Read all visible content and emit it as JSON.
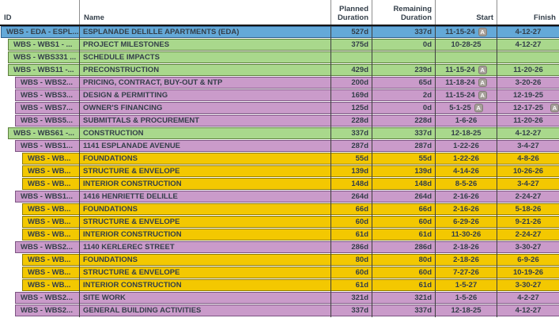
{
  "columns": {
    "id": "ID",
    "name": "Name",
    "planned": "Planned Duration",
    "remaining": "Remaining Duration",
    "start": "Start",
    "finish": "Finish"
  },
  "badge_label": "A",
  "row_colors": {
    "project": {
      "fill": "#64a9d8",
      "border": "#2e5f8c"
    },
    "phase": {
      "fill": "#a9d88c",
      "border": "#5d7f3d"
    },
    "area": {
      "fill": "#ca9bca",
      "border": "#7d5583"
    },
    "task": {
      "fill": "#f3c801",
      "border": "#8f7c00"
    }
  },
  "rows": [
    {
      "id": "WBS - EDA - ESPL...",
      "name": "ESPLANADE DELILLE APARTMENTS (EDA)",
      "level": 0,
      "color": "project",
      "planned": "527d",
      "remaining": "337d",
      "start": "11-15-24",
      "start_a": true,
      "finish": "4-12-27",
      "finish_a": false
    },
    {
      "id": "WBS - WBS1 - ...",
      "name": "PROJECT MILESTONES",
      "level": 1,
      "color": "phase",
      "planned": "375d",
      "remaining": "0d",
      "start": "10-28-25",
      "start_a": false,
      "finish": "4-12-27",
      "finish_a": false
    },
    {
      "id": "WBS - WBS331 ...",
      "name": "SCHEDULE IMPACTS",
      "level": 1,
      "color": "phase",
      "planned": "",
      "remaining": "",
      "start": "",
      "start_a": false,
      "finish": "",
      "finish_a": false
    },
    {
      "id": "WBS - WBS11 -...",
      "name": "PRECONSTRUCTION",
      "level": 1,
      "color": "phase",
      "planned": "429d",
      "remaining": "239d",
      "start": "11-15-24",
      "start_a": true,
      "finish": "11-20-26",
      "finish_a": false
    },
    {
      "id": "WBS - WBS2...",
      "name": "PRICING, CONTRACT, BUY-OUT & NTP",
      "level": 2,
      "color": "area",
      "planned": "200d",
      "remaining": "65d",
      "start": "11-18-24",
      "start_a": true,
      "finish": "3-20-26",
      "finish_a": false
    },
    {
      "id": "WBS - WBS3...",
      "name": "DESIGN & PERMITTING",
      "level": 2,
      "color": "area",
      "planned": "169d",
      "remaining": "2d",
      "start": "11-15-24",
      "start_a": true,
      "finish": "12-19-25",
      "finish_a": false
    },
    {
      "id": "WBS - WBS7...",
      "name": "OWNER'S FINANCING",
      "level": 2,
      "color": "area",
      "planned": "125d",
      "remaining": "0d",
      "start": "5-1-25",
      "start_a": true,
      "finish": "12-17-25",
      "finish_a": true
    },
    {
      "id": "WBS - WBS5...",
      "name": "SUBMITTALS & PROCUREMENT",
      "level": 2,
      "color": "area",
      "planned": "228d",
      "remaining": "228d",
      "start": "1-6-26",
      "start_a": false,
      "finish": "11-20-26",
      "finish_a": false
    },
    {
      "id": "WBS - WBS61 -...",
      "name": "CONSTRUCTION",
      "level": 1,
      "color": "phase",
      "planned": "337d",
      "remaining": "337d",
      "start": "12-18-25",
      "start_a": false,
      "finish": "4-12-27",
      "finish_a": false
    },
    {
      "id": "WBS - WBS1...",
      "name": "1141 ESPLANADE AVENUE",
      "level": 2,
      "color": "area",
      "planned": "287d",
      "remaining": "287d",
      "start": "1-22-26",
      "start_a": false,
      "finish": "3-4-27",
      "finish_a": false
    },
    {
      "id": "WBS - WB...",
      "name": "FOUNDATIONS",
      "level": 3,
      "color": "task",
      "planned": "55d",
      "remaining": "55d",
      "start": "1-22-26",
      "start_a": false,
      "finish": "4-8-26",
      "finish_a": false
    },
    {
      "id": "WBS - WB...",
      "name": "STRUCTURE & ENVELOPE",
      "level": 3,
      "color": "task",
      "planned": "139d",
      "remaining": "139d",
      "start": "4-14-26",
      "start_a": false,
      "finish": "10-26-26",
      "finish_a": false
    },
    {
      "id": "WBS - WB...",
      "name": "INTERIOR CONSTRUCTION",
      "level": 3,
      "color": "task",
      "planned": "148d",
      "remaining": "148d",
      "start": "8-5-26",
      "start_a": false,
      "finish": "3-4-27",
      "finish_a": false
    },
    {
      "id": "WBS - WBS1...",
      "name": "1416 HENRIETTE DELILLE",
      "level": 2,
      "color": "area",
      "planned": "264d",
      "remaining": "264d",
      "start": "2-16-26",
      "start_a": false,
      "finish": "2-24-27",
      "finish_a": false
    },
    {
      "id": "WBS - WB...",
      "name": "FOUNDATIONS",
      "level": 3,
      "color": "task",
      "planned": "66d",
      "remaining": "66d",
      "start": "2-16-26",
      "start_a": false,
      "finish": "5-18-26",
      "finish_a": false
    },
    {
      "id": "WBS - WB...",
      "name": "STRUCTURE & ENVELOPE",
      "level": 3,
      "color": "task",
      "planned": "60d",
      "remaining": "60d",
      "start": "6-29-26",
      "start_a": false,
      "finish": "9-21-26",
      "finish_a": false
    },
    {
      "id": "WBS - WB...",
      "name": "INTERIOR CONSTRUCTION",
      "level": 3,
      "color": "task",
      "planned": "61d",
      "remaining": "61d",
      "start": "11-30-26",
      "start_a": false,
      "finish": "2-24-27",
      "finish_a": false
    },
    {
      "id": "WBS - WBS2...",
      "name": "1140 KERLEREC STREET",
      "level": 2,
      "color": "area",
      "planned": "286d",
      "remaining": "286d",
      "start": "2-18-26",
      "start_a": false,
      "finish": "3-30-27",
      "finish_a": false
    },
    {
      "id": "WBS - WB...",
      "name": "FOUNDATIONS",
      "level": 3,
      "color": "task",
      "planned": "80d",
      "remaining": "80d",
      "start": "2-18-26",
      "start_a": false,
      "finish": "6-9-26",
      "finish_a": false
    },
    {
      "id": "WBS - WB...",
      "name": "STRUCTURE & ENVELOPE",
      "level": 3,
      "color": "task",
      "planned": "60d",
      "remaining": "60d",
      "start": "7-27-26",
      "start_a": false,
      "finish": "10-19-26",
      "finish_a": false
    },
    {
      "id": "WBS - WB...",
      "name": "INTERIOR CONSTRUCTION",
      "level": 3,
      "color": "task",
      "planned": "61d",
      "remaining": "61d",
      "start": "1-5-27",
      "start_a": false,
      "finish": "3-30-27",
      "finish_a": false
    },
    {
      "id": "WBS - WBS2...",
      "name": "SITE WORK",
      "level": 2,
      "color": "area",
      "planned": "321d",
      "remaining": "321d",
      "start": "1-5-26",
      "start_a": false,
      "finish": "4-2-27",
      "finish_a": false
    },
    {
      "id": "WBS - WBS2...",
      "name": "GENERAL BUILDING ACTIVITIES",
      "level": 2,
      "color": "area",
      "planned": "337d",
      "remaining": "337d",
      "start": "12-18-25",
      "start_a": false,
      "finish": "4-12-27",
      "finish_a": false
    }
  ]
}
